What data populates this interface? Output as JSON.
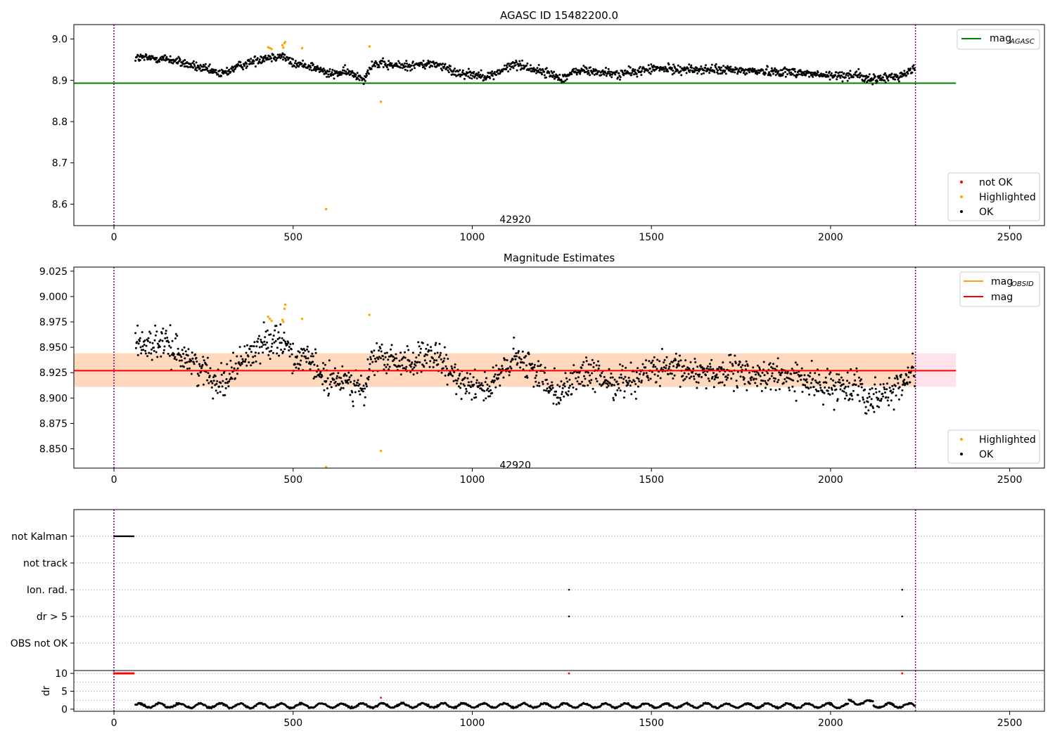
{
  "chart_data": [
    {
      "type": "scatter",
      "title": "AGASC ID 15482200.0",
      "xlim": [
        -112,
        2597
      ],
      "ylim": [
        8.548,
        9.035
      ],
      "x_ticks": [
        0,
        500,
        1000,
        1500,
        2000,
        2500
      ],
      "y_ticks": [
        8.6,
        8.7,
        8.8,
        8.9,
        9.0
      ],
      "y_tick_labels": [
        "8.6",
        "8.7",
        "8.8",
        "8.9",
        "9.0"
      ],
      "vlines": [
        0,
        2237
      ],
      "hline": {
        "y": 8.893,
        "x_end": 2350,
        "color": "#008000"
      },
      "annotation": {
        "text": "42920",
        "x": 1120,
        "y": 8.563
      },
      "legend_top": {
        "label": "mag",
        "subscript": "AGASC",
        "position": "top-right",
        "color": "#008000"
      },
      "legend_bottom": {
        "position": "lower-right",
        "entries": [
          {
            "label": "not OK",
            "color": "#ff0000"
          },
          {
            "label": "Highlighted",
            "color": "#ffa500"
          },
          {
            "label": "OK",
            "color": "#000000"
          }
        ]
      },
      "highlighted_points": [
        [
          430,
          8.98
        ],
        [
          435,
          8.978
        ],
        [
          440,
          8.976
        ],
        [
          470,
          8.985
        ],
        [
          473,
          8.979
        ],
        [
          476,
          8.99
        ],
        [
          478,
          8.993
        ],
        [
          525,
          8.978
        ],
        [
          713,
          8.982
        ],
        [
          745,
          8.848
        ],
        [
          592,
          8.588
        ]
      ],
      "ok_series": {
        "x_range": [
          60,
          2235
        ],
        "count": 1500,
        "baseline_anchors": [
          [
            60,
            8.955
          ],
          [
            150,
            8.952
          ],
          [
            200,
            8.94
          ],
          [
            300,
            8.915
          ],
          [
            350,
            8.935
          ],
          [
            420,
            8.955
          ],
          [
            470,
            8.96
          ],
          [
            500,
            8.94
          ],
          [
            550,
            8.935
          ],
          [
            600,
            8.915
          ],
          [
            650,
            8.92
          ],
          [
            700,
            8.905
          ],
          [
            720,
            8.94
          ],
          [
            800,
            8.935
          ],
          [
            900,
            8.94
          ],
          [
            950,
            8.92
          ],
          [
            1050,
            8.91
          ],
          [
            1120,
            8.94
          ],
          [
            1200,
            8.92
          ],
          [
            1250,
            8.905
          ],
          [
            1300,
            8.925
          ],
          [
            1400,
            8.915
          ],
          [
            1450,
            8.92
          ],
          [
            1500,
            8.928
          ],
          [
            1700,
            8.925
          ],
          [
            1900,
            8.92
          ],
          [
            2000,
            8.91
          ],
          [
            2080,
            8.915
          ],
          [
            2100,
            8.9
          ],
          [
            2200,
            8.912
          ],
          [
            2235,
            8.93
          ]
        ],
        "noise": 0.008
      }
    },
    {
      "type": "scatter",
      "title": "Magnitude Estimates",
      "xlim": [
        -112,
        2597
      ],
      "ylim": [
        8.831,
        9.029
      ],
      "x_ticks": [
        0,
        500,
        1000,
        1500,
        2000,
        2500
      ],
      "y_ticks": [
        8.85,
        8.875,
        8.9,
        8.925,
        8.95,
        8.975,
        9.0,
        9.025
      ],
      "y_tick_labels": [
        "8.850",
        "8.875",
        "8.900",
        "8.925",
        "8.950",
        "8.975",
        "9.000",
        "9.025"
      ],
      "vlines": [
        0,
        2237
      ],
      "band_pink": {
        "y0": 8.911,
        "y1": 8.944,
        "x_end": 2350,
        "color": "#ffc0cb"
      },
      "band_orange": {
        "y0": 8.911,
        "y1": 8.944,
        "x_end": 2237,
        "color": "#ffa500"
      },
      "hline_mag": {
        "y": 8.927,
        "x_end": 2350,
        "color": "#ff0000"
      },
      "annotation": {
        "text": "42920",
        "x": 1120,
        "y": 8.834
      },
      "legend_top": {
        "position": "top-right",
        "entries": [
          {
            "label": "mag",
            "subscript": "OBSID",
            "color": "#ffa500"
          },
          {
            "label": "mag",
            "subscript": "",
            "color": "#ff0000"
          }
        ]
      },
      "legend_bottom": {
        "position": "lower-right",
        "entries": [
          {
            "label": "Highlighted",
            "color": "#ffa500"
          },
          {
            "label": "OK",
            "color": "#000000"
          }
        ]
      },
      "highlighted_points": [
        [
          430,
          8.98
        ],
        [
          435,
          8.978
        ],
        [
          440,
          8.976
        ],
        [
          470,
          8.977
        ],
        [
          473,
          8.975
        ],
        [
          476,
          8.988
        ],
        [
          478,
          8.992
        ],
        [
          525,
          8.978
        ],
        [
          713,
          8.982
        ],
        [
          745,
          8.848
        ],
        [
          592,
          8.832
        ]
      ],
      "ok_series": {
        "x_range": [
          60,
          2235
        ],
        "count": 1500,
        "baseline_anchors": [
          [
            60,
            8.955
          ],
          [
            150,
            8.952
          ],
          [
            200,
            8.94
          ],
          [
            300,
            8.915
          ],
          [
            350,
            8.935
          ],
          [
            420,
            8.955
          ],
          [
            470,
            8.96
          ],
          [
            500,
            8.94
          ],
          [
            550,
            8.935
          ],
          [
            600,
            8.915
          ],
          [
            650,
            8.92
          ],
          [
            700,
            8.905
          ],
          [
            720,
            8.94
          ],
          [
            800,
            8.935
          ],
          [
            900,
            8.94
          ],
          [
            950,
            8.92
          ],
          [
            1050,
            8.91
          ],
          [
            1120,
            8.94
          ],
          [
            1200,
            8.92
          ],
          [
            1250,
            8.905
          ],
          [
            1300,
            8.925
          ],
          [
            1400,
            8.915
          ],
          [
            1450,
            8.92
          ],
          [
            1500,
            8.928
          ],
          [
            1700,
            8.925
          ],
          [
            1900,
            8.92
          ],
          [
            2000,
            8.91
          ],
          [
            2080,
            8.915
          ],
          [
            2100,
            8.9
          ],
          [
            2200,
            8.912
          ],
          [
            2235,
            8.93
          ]
        ],
        "noise": 0.011
      }
    },
    {
      "type": "scatter",
      "xlim": [
        -112,
        2597
      ],
      "x_ticks": [
        0,
        500,
        1000,
        1500,
        2000,
        2500
      ],
      "vlines": [
        0,
        2237
      ],
      "flag_rows": [
        "not Kalman",
        "not track",
        "Ion. rad.",
        "dr > 5",
        "OBS not OK"
      ],
      "flag_points": [
        {
          "row": "not Kalman",
          "x_range": [
            0,
            55
          ],
          "count": 28
        },
        {
          "row": "Ion. rad.",
          "x": [
            1270,
            2200
          ]
        },
        {
          "row": "dr > 5",
          "x": [
            1270,
            2200
          ]
        }
      ]
    },
    {
      "type": "scatter",
      "ylabel": "dr",
      "xlim": [
        -112,
        2597
      ],
      "ylim": [
        -0.6,
        10.8
      ],
      "x_ticks": [
        0,
        500,
        1000,
        1500,
        2000,
        2500
      ],
      "y_ticks": [
        0,
        5,
        10
      ],
      "y_tick_labels": [
        "0",
        "5",
        "10"
      ],
      "vlines": [
        0,
        2237
      ],
      "red_points": {
        "x_range": [
          0,
          55
        ],
        "y": 10,
        "count": 28,
        "extra": [
          [
            1270,
            10
          ],
          [
            2200,
            10
          ],
          [
            745,
            3.2
          ]
        ]
      },
      "ok_series": {
        "x_range": [
          60,
          2235
        ],
        "count": 1100,
        "mean": 1.0,
        "amplitude": 0.6
      }
    }
  ]
}
